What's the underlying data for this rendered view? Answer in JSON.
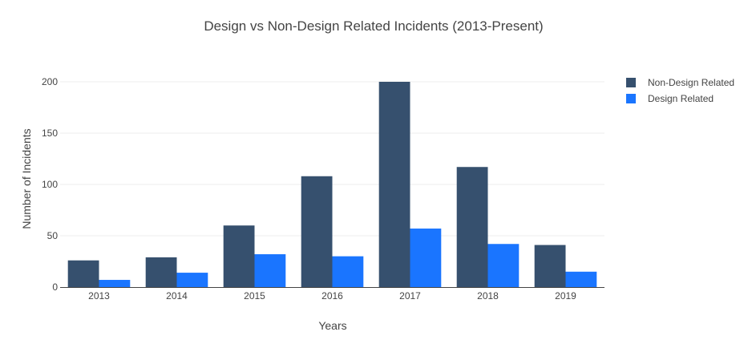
{
  "chart_data": {
    "type": "bar",
    "title": "Design vs Non-Design Related Incidents (2013-Present)",
    "xlabel": "Years",
    "ylabel": "Number of Incidents",
    "categories": [
      "2013",
      "2014",
      "2015",
      "2016",
      "2017",
      "2018",
      "2019"
    ],
    "series": [
      {
        "name": "Non-Design Related",
        "color": "#36506e",
        "values": [
          26,
          29,
          60,
          108,
          200,
          117,
          41
        ]
      },
      {
        "name": "Design Related",
        "color": "#1a75ff",
        "values": [
          7,
          14,
          32,
          30,
          57,
          42,
          15
        ]
      }
    ],
    "ylim": [
      0,
      200
    ],
    "yticks": [
      "0",
      "50",
      "100",
      "150",
      "200"
    ],
    "grid": true,
    "legend_position": "top-right",
    "barmode": "group"
  }
}
